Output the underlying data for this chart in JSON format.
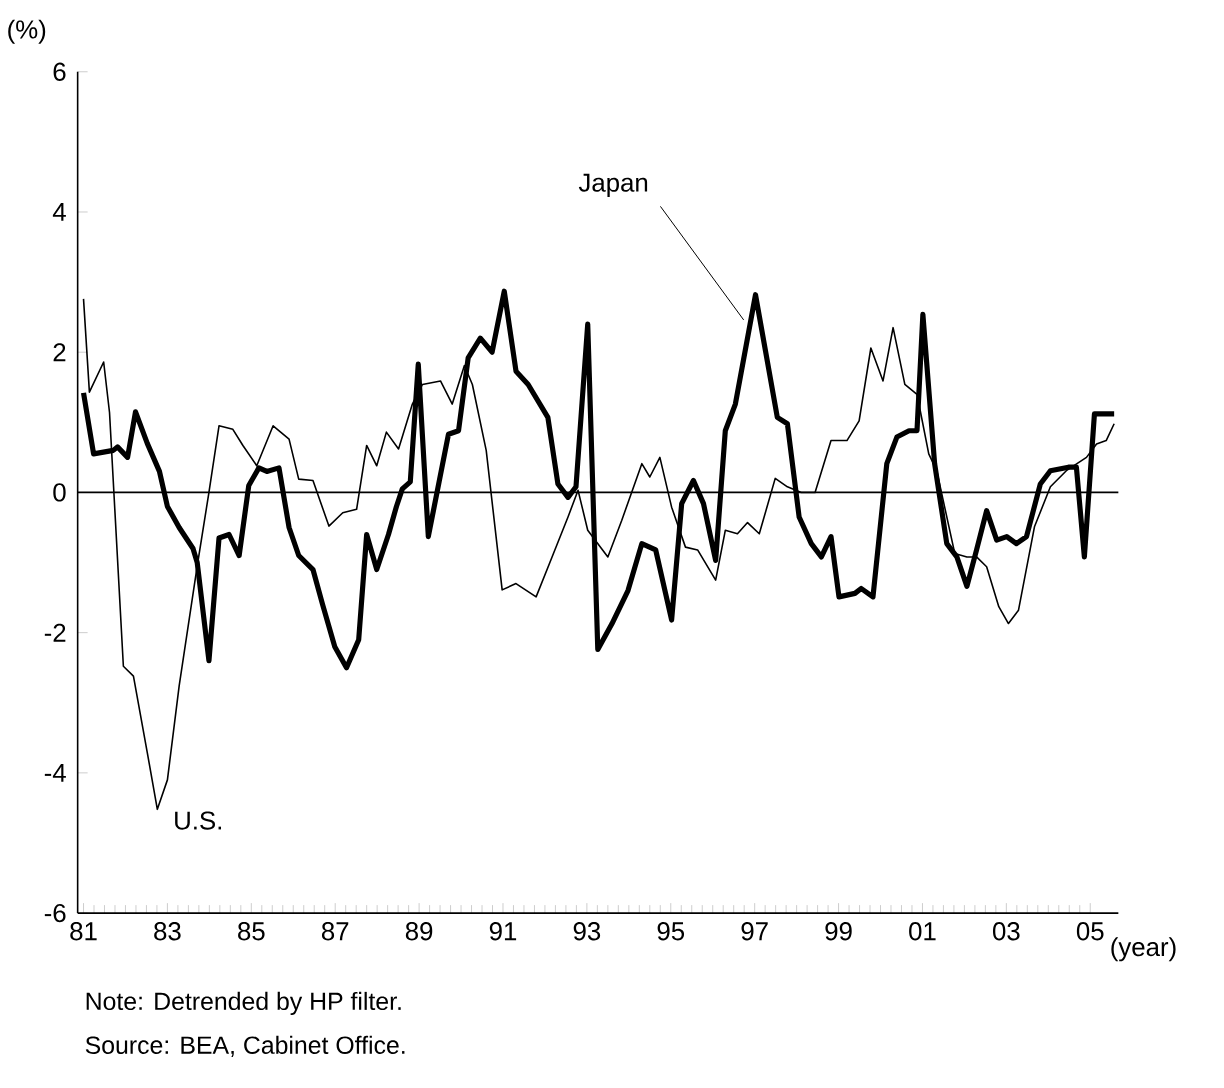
{
  "chart_data": {
    "type": "line",
    "ylabel": "(%)",
    "xlabel": "(year)",
    "xlim": [
      1980.86,
      2005.67
    ],
    "ylim": [
      -6,
      6
    ],
    "xticks": [
      {
        "value": 1981,
        "label": "81"
      },
      {
        "value": 1983,
        "label": "83"
      },
      {
        "value": 1985,
        "label": "85"
      },
      {
        "value": 1987,
        "label": "87"
      },
      {
        "value": 1989,
        "label": "89"
      },
      {
        "value": 1991,
        "label": "91"
      },
      {
        "value": 1993,
        "label": "93"
      },
      {
        "value": 1995,
        "label": "95"
      },
      {
        "value": 1997,
        "label": "97"
      },
      {
        "value": 1999,
        "label": "99"
      },
      {
        "value": 2001,
        "label": "01"
      },
      {
        "value": 2003,
        "label": "03"
      },
      {
        "value": 2005,
        "label": "05"
      }
    ],
    "yticks": [
      -6,
      -4,
      -2,
      0,
      2,
      4,
      6
    ],
    "ref_lines": [
      {
        "axis": "y",
        "value": 0,
        "color": "#000000"
      }
    ],
    "annotations": [
      "Note: Detrended by HP filter.",
      "Source: BEA, Cabinet Office."
    ],
    "grid": false,
    "legend": false,
    "marker": "none",
    "line_style": "solid",
    "series": [
      {
        "name": "Japan",
        "color": "#000000",
        "x": [
          1981.0,
          1981.24,
          1981.71,
          1981.81,
          1982.05,
          1982.24,
          1982.52,
          1982.81,
          1983.0,
          1983.28,
          1983.61,
          1983.71,
          1983.99,
          1984.23,
          1984.47,
          1984.71,
          1984.94,
          1985.18,
          1985.37,
          1985.66,
          1985.9,
          1986.13,
          1986.47,
          1986.7,
          1986.99,
          1987.27,
          1987.56,
          1987.75,
          1987.99,
          1988.27,
          1988.46,
          1988.6,
          1988.79,
          1988.98,
          1989.22,
          1989.7,
          1989.94,
          1990.17,
          1990.46,
          1990.74,
          1991.03,
          1991.31,
          1991.6,
          1992.07,
          1992.31,
          1992.55,
          1992.74,
          1993.02,
          1993.26,
          1993.6,
          1993.98,
          1994.31,
          1994.64,
          1995.02,
          1995.26,
          1995.54,
          1995.78,
          1996.07,
          1996.3,
          1996.54,
          1997.02,
          1997.54,
          1997.78,
          1998.06,
          1998.35,
          1998.59,
          1998.82,
          1999.01,
          1999.39,
          1999.54,
          1999.82,
          2000.15,
          2000.39,
          2000.68,
          2000.87,
          2001.01,
          2001.29,
          2001.58,
          2001.82,
          2002.06,
          2002.29,
          2002.53,
          2002.77,
          2003.01,
          2003.24,
          2003.48,
          2003.81,
          2004.05,
          2004.48,
          2004.67,
          2004.86,
          2005.1,
          2005.57
        ],
        "values": [
          1.42,
          0.55,
          0.6,
          0.65,
          0.5,
          1.15,
          0.7,
          0.3,
          -0.2,
          -0.5,
          -0.8,
          -1.0,
          -2.4,
          -0.65,
          -0.6,
          -0.9,
          0.1,
          0.35,
          0.3,
          0.35,
          -0.5,
          -0.9,
          -1.1,
          -1.6,
          -2.2,
          -2.5,
          -2.1,
          -0.6,
          -1.1,
          -0.6,
          -0.2,
          0.05,
          0.15,
          1.83,
          -0.63,
          0.83,
          0.88,
          1.92,
          2.2,
          2.0,
          2.87,
          1.73,
          1.54,
          1.07,
          0.12,
          -0.07,
          0.08,
          2.4,
          -2.24,
          -1.87,
          -1.4,
          -0.73,
          -0.82,
          -1.82,
          -0.16,
          0.17,
          -0.16,
          -0.97,
          0.88,
          1.26,
          2.82,
          1.07,
          0.98,
          -0.35,
          -0.73,
          -0.92,
          -0.63,
          -1.49,
          -1.44,
          -1.37,
          -1.49,
          0.41,
          0.79,
          0.88,
          0.88,
          2.54,
          0.41,
          -0.73,
          -0.92,
          -1.34,
          -0.82,
          -0.26,
          -0.68,
          -0.63,
          -0.73,
          -0.63,
          0.12,
          0.31,
          0.36,
          0.36,
          -0.92,
          1.12,
          1.12
        ]
      },
      {
        "name": "U.S.",
        "color": "#000000",
        "x": [
          1981.0,
          1981.14,
          1981.48,
          1981.62,
          1981.95,
          1982.19,
          1982.52,
          1982.76,
          1983.0,
          1983.28,
          1983.71,
          1983.99,
          1984.23,
          1984.56,
          1984.8,
          1985.13,
          1985.52,
          1985.9,
          1986.13,
          1986.47,
          1986.85,
          1987.18,
          1987.51,
          1987.75,
          1987.99,
          1988.22,
          1988.51,
          1988.84,
          1989.08,
          1989.51,
          1989.79,
          1990.08,
          1990.27,
          1990.6,
          1990.98,
          1991.31,
          1991.79,
          1992.17,
          1992.55,
          1992.79,
          1993.02,
          1993.5,
          1993.83,
          1994.31,
          1994.5,
          1994.74,
          1995.02,
          1995.35,
          1995.64,
          1996.07,
          1996.3,
          1996.59,
          1996.83,
          1997.11,
          1997.49,
          1997.78,
          1998.11,
          1998.44,
          1998.82,
          1999.2,
          1999.49,
          1999.77,
          2000.06,
          2000.3,
          2000.58,
          2000.87,
          2001.15,
          2001.34,
          2001.77,
          2002.06,
          2002.29,
          2002.53,
          2002.82,
          2003.05,
          2003.29,
          2003.67,
          2004.05,
          2004.43,
          2004.91,
          2005.15,
          2005.38,
          2005.57
        ],
        "values": [
          2.76,
          1.43,
          1.86,
          1.14,
          -2.48,
          -2.62,
          -3.71,
          -4.52,
          -4.1,
          -2.76,
          -1.05,
          0,
          0.95,
          0.9,
          0.67,
          0.38,
          0.95,
          0.76,
          0.19,
          0.17,
          -0.48,
          -0.29,
          -0.24,
          0.67,
          0.38,
          0.86,
          0.62,
          1.26,
          1.54,
          1.59,
          1.26,
          1.81,
          1.54,
          0.6,
          -1.39,
          -1.3,
          -1.49,
          -0.92,
          -0.35,
          0.03,
          -0.54,
          -0.92,
          -0.4,
          0.41,
          0.22,
          0.5,
          -0.21,
          -0.78,
          -0.82,
          -1.25,
          -0.54,
          -0.59,
          -0.43,
          -0.59,
          0.2,
          0.08,
          0,
          0,
          0.74,
          0.74,
          1.02,
          2.06,
          1.59,
          2.35,
          1.54,
          1.4,
          0.55,
          0.31,
          -0.87,
          -0.92,
          -0.92,
          -1.06,
          -1.63,
          -1.87,
          -1.68,
          -0.49,
          0.08,
          0.31,
          0.5,
          0.69,
          0.74,
          0.98
        ]
      }
    ]
  }
}
